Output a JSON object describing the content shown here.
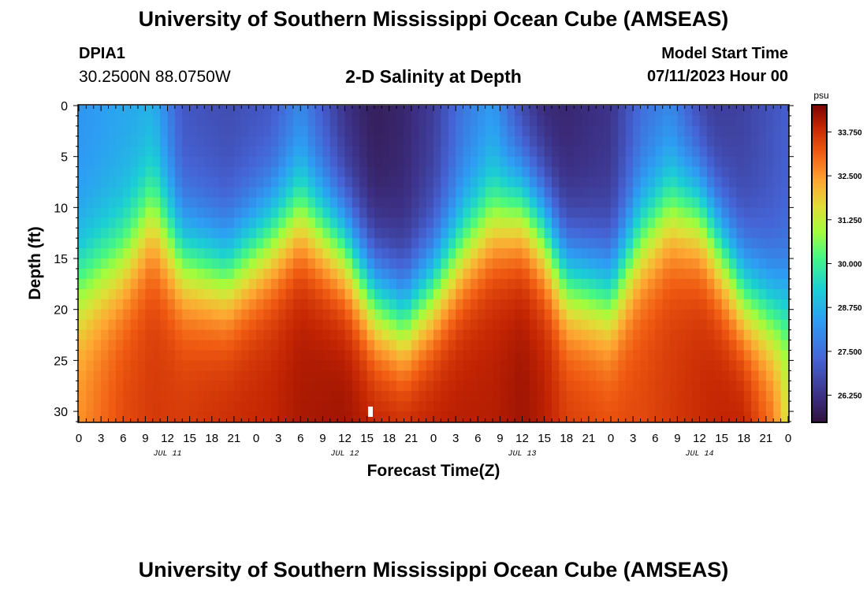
{
  "header": {
    "title": "University of Southern Mississippi Ocean Cube (AMSEAS)",
    "station_id": "DPIA1",
    "coords": "30.2500N  88.0750W",
    "plot_title": "2-D Salinity at Depth",
    "start_label": "Model Start Time",
    "start_value": "07/11/2023 Hour 00"
  },
  "footer": {
    "title": "University of Southern Mississippi Ocean Cube (AMSEAS)"
  },
  "chart_data": {
    "type": "heatmap",
    "xlabel": "Forecast Time(Z)",
    "ylabel": "Depth (ft)",
    "x_range_hours": [
      0,
      96
    ],
    "y_range_ft": [
      0,
      31
    ],
    "x_tick_labels": [
      "0",
      "3",
      "6",
      "9",
      "12",
      "15",
      "18",
      "21",
      "0",
      "3",
      "6",
      "9",
      "12",
      "15",
      "18",
      "21",
      "0",
      "3",
      "6",
      "9",
      "12",
      "15",
      "18",
      "21",
      "0",
      "3",
      "6",
      "9",
      "12",
      "15",
      "18",
      "21",
      "0"
    ],
    "y_ticks": [
      0,
      5,
      10,
      15,
      20,
      25,
      30
    ],
    "date_labels": [
      {
        "text": "JUL 11",
        "hour": 12
      },
      {
        "text": "JUL 12",
        "hour": 36
      },
      {
        "text": "JUL 13",
        "hour": 60
      },
      {
        "text": "JUL 14",
        "hour": 84
      }
    ],
    "colorbar": {
      "unit": "psu",
      "range": [
        25.5,
        34.5
      ],
      "ticks": [
        "33.750",
        "32.500",
        "31.250",
        "30.000",
        "28.750",
        "27.500",
        "26.250"
      ]
    },
    "salinity_profile": {
      "description_columns": "hour, top salinity (psu), halocline depth (ft)",
      "hours": [
        0,
        6,
        10,
        14,
        20,
        26,
        30,
        36,
        40,
        44,
        48,
        52,
        56,
        60,
        63,
        66,
        72,
        76,
        80,
        84,
        86,
        90,
        94,
        96
      ],
      "surface_psu": [
        28.2,
        28.5,
        28.6,
        27.0,
        26.8,
        27.0,
        27.8,
        26.2,
        25.8,
        26.0,
        26.5,
        27.6,
        28.2,
        26.5,
        26.0,
        26.0,
        26.3,
        27.4,
        27.8,
        26.6,
        26.4,
        26.6,
        27.0,
        27.2
      ],
      "halocline_ft": [
        17.5,
        15.0,
        10.5,
        15.0,
        16.5,
        13.0,
        10.5,
        14.0,
        19.0,
        21.0,
        18.0,
        14.0,
        11.0,
        10.0,
        12.5,
        17.0,
        18.5,
        13.0,
        10.0,
        10.5,
        13.0,
        18.5,
        20.5,
        20.0
      ],
      "bottom_psu": [
        32.6,
        33.4,
        33.6,
        33.6,
        33.8,
        33.9,
        34.1,
        34.2,
        34.0,
        34.0,
        34.0,
        34.0,
        34.0,
        34.2,
        34.0,
        33.6,
        33.4,
        33.4,
        33.6,
        33.8,
        33.9,
        34.0,
        33.0,
        31.5
      ]
    }
  }
}
